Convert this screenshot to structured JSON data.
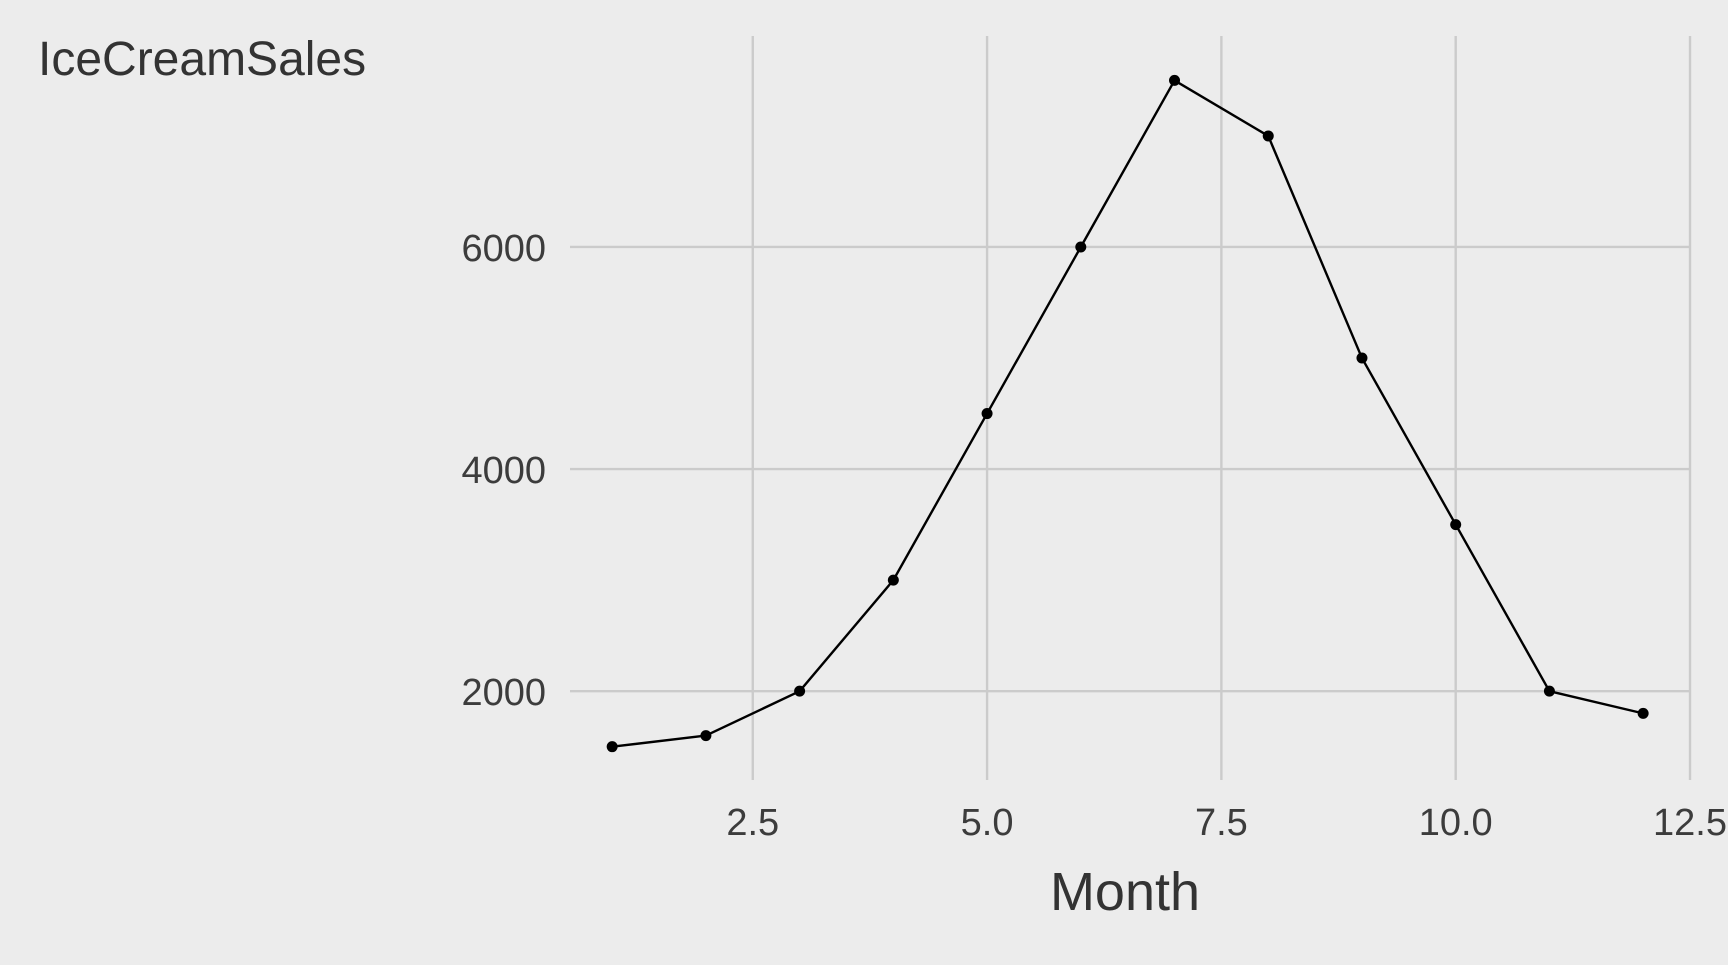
{
  "chart_data": {
    "type": "line",
    "title": "",
    "xlabel": "Month",
    "ylabel": "IceCreamSales",
    "x": [
      1,
      2,
      3,
      4,
      5,
      6,
      7,
      8,
      9,
      10,
      11,
      12
    ],
    "series": [
      {
        "values": [
          1500,
          1600,
          2000,
          3000,
          4500,
          6000,
          7500,
          7000,
          5000,
          3500,
          2000,
          1800
        ]
      }
    ],
    "xlim": [
      0.55,
      12.5
    ],
    "ylim": [
      1200,
      7900
    ],
    "x_ticks": [
      2.5,
      5.0,
      7.5,
      10.0,
      12.5
    ],
    "x_tick_labels": [
      "2.5",
      "5.0",
      "7.5",
      "10.0",
      "12.5"
    ],
    "y_ticks": [
      2000,
      4000,
      6000
    ],
    "y_tick_labels": [
      "2000",
      "4000",
      "6000"
    ],
    "grid": true,
    "legend": "none",
    "background_color": "#ececec",
    "grid_color": "#cbcbcb",
    "line_color": "#000000",
    "text_color": "#333333"
  }
}
